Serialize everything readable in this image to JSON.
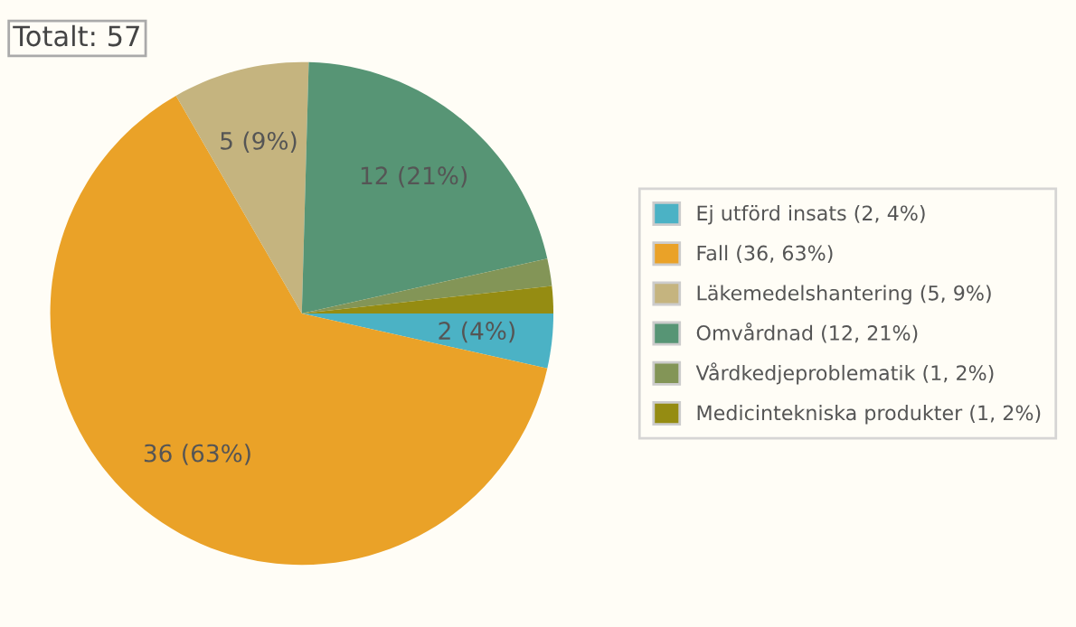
{
  "chart_data": {
    "type": "pie",
    "title": "Totalt: 57",
    "categories": [
      "Ej utförd insats (2, 4%)",
      "Fall (36, 63%)",
      "Läkemedelshantering (5, 9%)",
      "Omvårdnad (12, 21%)",
      "Vårdkedjeproblematik (1, 2%)",
      "Medicintekniska produkter (1, 2%)"
    ],
    "values": [
      2,
      36,
      5,
      12,
      1,
      1
    ],
    "colors": [
      "#4bb2c5",
      "#eaa228",
      "#c5b47f",
      "#579575",
      "#839557",
      "#958c12"
    ],
    "value_labels": [
      "2 (4%)",
      "36 (63%)",
      "5 (9%)",
      "12 (21%)",
      null,
      null
    ],
    "legend": "right"
  }
}
